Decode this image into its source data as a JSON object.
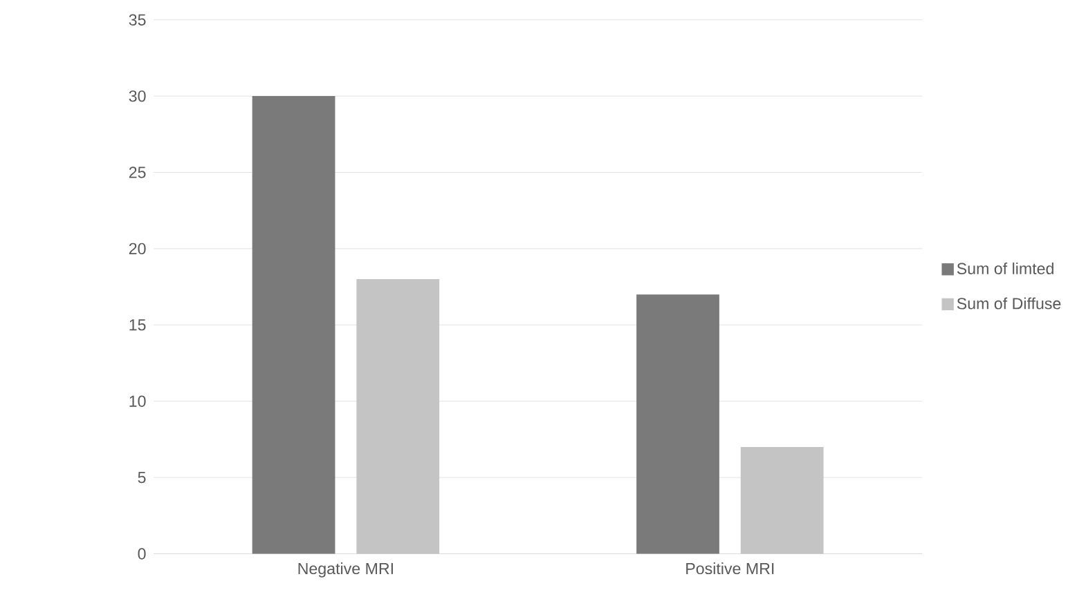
{
  "chart_data": {
    "type": "bar",
    "categories": [
      "Negative MRI",
      "Positive MRI"
    ],
    "series": [
      {
        "name": "Sum of limted",
        "color": "#7a7a7a",
        "values": [
          30,
          17
        ]
      },
      {
        "name": "Sum of Diffuse",
        "color": "#c4c4c4",
        "values": [
          18,
          7
        ]
      }
    ],
    "ylim": [
      0,
      35
    ],
    "yticks": [
      0,
      5,
      10,
      15,
      20,
      25,
      30,
      35
    ],
    "grid": "y",
    "legend": "right"
  }
}
